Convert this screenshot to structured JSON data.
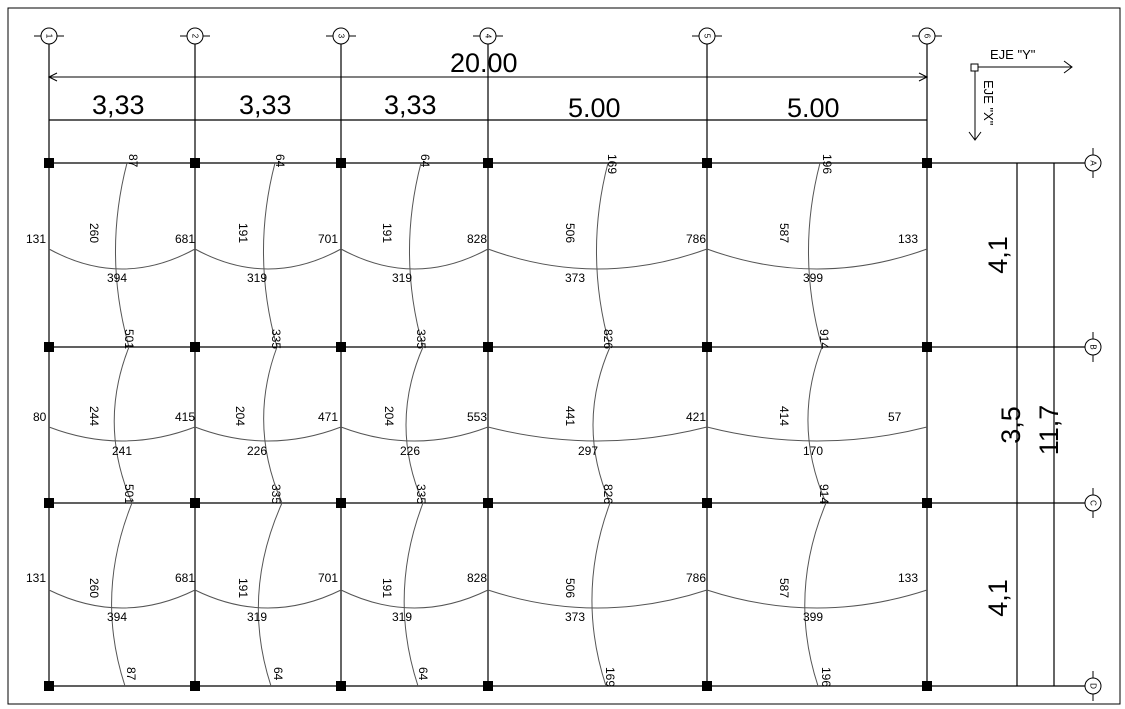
{
  "axes_numeric": [
    "1",
    "2",
    "3",
    "4",
    "5",
    "6"
  ],
  "axes_letter": [
    "A",
    "B",
    "C",
    "D"
  ],
  "dimensions": {
    "total_x": "20.00",
    "spans_x": [
      "3,33",
      "3,33",
      "3,33",
      "5.00",
      "5.00"
    ],
    "spans_y": [
      "4,1",
      "3,5",
      "4,1"
    ],
    "total_y": "11,7"
  },
  "axis_labels": {
    "y": "EJE \"Y\"",
    "x": "EJE \"X\""
  },
  "moments": {
    "horizontal_ends": [
      [
        "131",
        "681",
        "701",
        "828",
        "786",
        "133"
      ],
      [
        "80",
        "415",
        "471",
        "553",
        "421",
        "57"
      ],
      [
        "131",
        "681",
        "701",
        "828",
        "786",
        "133"
      ]
    ],
    "horizontal_mid": [
      [
        "394",
        "319",
        "319",
        "373",
        "399"
      ],
      [
        "241",
        "226",
        "226",
        "297",
        "170"
      ],
      [
        "394",
        "319",
        "319",
        "373",
        "399"
      ]
    ],
    "vertical_mid": [
      [
        "260",
        "191",
        "191",
        "506",
        "587"
      ],
      [
        "244",
        "204",
        "204",
        "441",
        "414"
      ],
      [
        "260",
        "191",
        "191",
        "506",
        "587"
      ]
    ],
    "vertical_ends": [
      [
        "87",
        "64",
        "64",
        "169",
        "196"
      ],
      [
        "501",
        "335",
        "335",
        "826",
        "914"
      ],
      [
        "501",
        "335",
        "335",
        "826",
        "914"
      ],
      [
        "87",
        "64",
        "64",
        "169",
        "196"
      ]
    ]
  }
}
